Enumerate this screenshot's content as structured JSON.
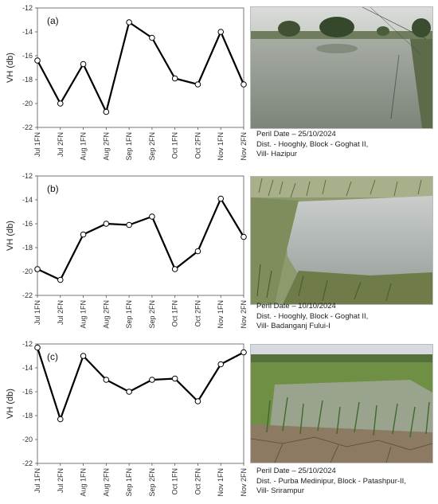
{
  "chart_data": [
    {
      "type": "line",
      "panel_label": "(a)",
      "ylabel": "VH (db)",
      "ylim": [
        -22,
        -12
      ],
      "yticks": [
        -22,
        -20,
        -18,
        -16,
        -14,
        -12
      ],
      "categories": [
        "Jul 1FN",
        "Jul 2FN",
        "Aug 1FN",
        "Aug 2FN",
        "Sep 1FN",
        "Sep 2FN",
        "Oct 1FN",
        "Oct 2FN",
        "Nov 1FN",
        "Nov 2FN"
      ],
      "values": [
        -16.4,
        -20.0,
        -16.7,
        -20.7,
        -13.2,
        -14.5,
        -17.9,
        -18.4,
        -14.0,
        -18.4
      ],
      "grid": false,
      "caption": {
        "line1": "Peril Date – 25/10/2024",
        "line2": "Dist. - Hooghly, Block - Goghat II,",
        "line3": "Vill- Hazipur"
      },
      "photo": "flooded-field-with-trees-image"
    },
    {
      "type": "line",
      "panel_label": "(b)",
      "ylabel": "VH (db)",
      "ylim": [
        -22,
        -12
      ],
      "yticks": [
        -22,
        -20,
        -18,
        -16,
        -14,
        -12
      ],
      "categories": [
        "Jul 1FN",
        "Jul 2FN",
        "Aug 1FN",
        "Aug 2FN",
        "Sep 1FN",
        "Sep 2FN",
        "Oct 1FN",
        "Oct 2FN",
        "Nov 1FN",
        "Nov 2FN"
      ],
      "values": [
        -19.8,
        -20.7,
        -16.9,
        -16.0,
        -16.1,
        -15.4,
        -19.8,
        -18.3,
        -13.9,
        -17.1
      ],
      "grid": false,
      "caption": {
        "line1": "Peril Date – 10/10/2024",
        "line2": "Dist. - Hooghly, Block - Goghat II,",
        "line3": "Vill- Badanganj Fului-I"
      },
      "photo": "waterlogged-paddy-field-image"
    },
    {
      "type": "line",
      "panel_label": "(c)",
      "ylabel": "VH (db)",
      "ylim": [
        -22,
        -12
      ],
      "yticks": [
        -22,
        -20,
        -18,
        -16,
        -14,
        -12
      ],
      "categories": [
        "Jul 1FN",
        "Jul 2FN",
        "Aug 1FN",
        "Aug 2FN",
        "Sep 1FN",
        "Sep 2FN",
        "Oct 1FN",
        "Oct 2FN",
        "Nov 1FN",
        "Nov 2FN"
      ],
      "values": [
        -12.3,
        -18.3,
        -13.0,
        -15.0,
        -16.0,
        -15.0,
        -14.9,
        -16.8,
        -13.7,
        -12.7
      ],
      "grid": false,
      "caption": {
        "line1": "Peril Date – 25/10/2024",
        "line2": "Dist. - Purba Medinipur, Block - Patashpur-II,",
        "line3": "Vill- Srirampur"
      },
      "photo": "paddy-field-cracked-soil-image"
    }
  ]
}
